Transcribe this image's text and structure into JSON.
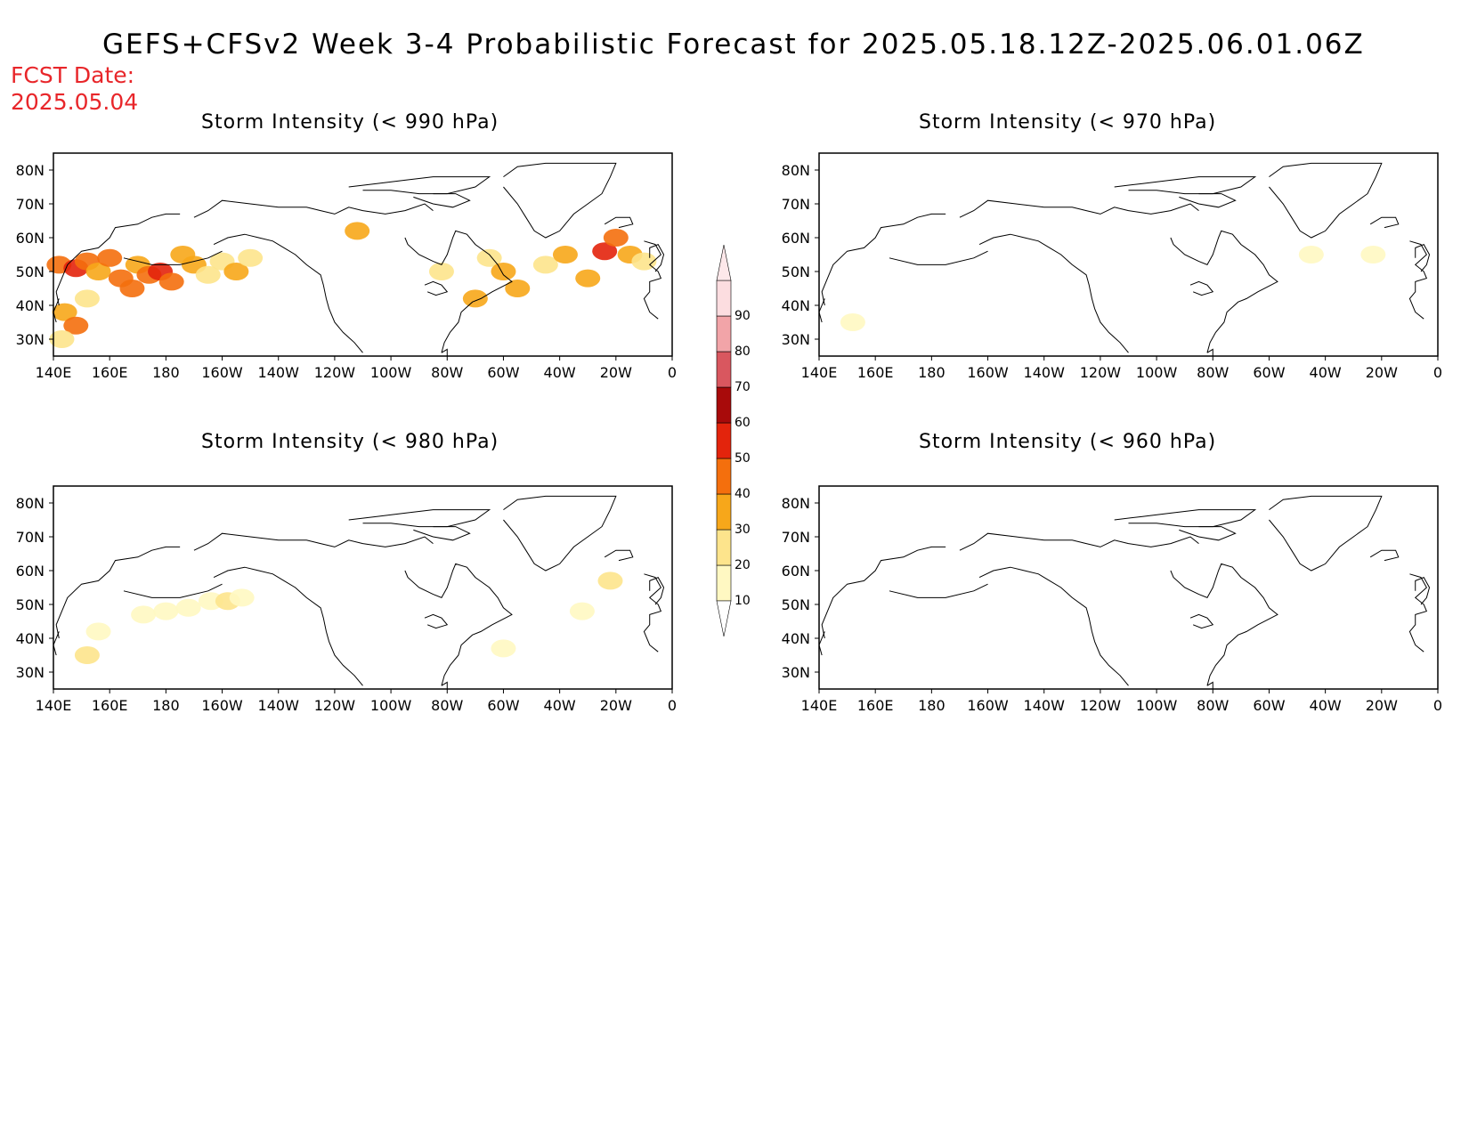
{
  "title": "GEFS+CFSv2 Week 3-4 Probabilistic Forecast for 2025.05.18.12Z-2025.06.01.06Z",
  "fcst_date": {
    "label": "FCST Date:",
    "value": "2025.05.04"
  },
  "panels": [
    {
      "title": "Storm Intensity (< 990 hPa)",
      "threshold_hpa": 990
    },
    {
      "title": "Storm Intensity (< 970 hPa)",
      "threshold_hpa": 970
    },
    {
      "title": "Storm Intensity (< 980 hPa)",
      "threshold_hpa": 980
    },
    {
      "title": "Storm Intensity (< 960 hPa)",
      "threshold_hpa": 960
    }
  ],
  "axes": {
    "lon_labels": [
      "140E",
      "160E",
      "180",
      "160W",
      "140W",
      "120W",
      "100W",
      "80W",
      "60W",
      "40W",
      "20W",
      "0"
    ],
    "lat_labels": [
      "80N",
      "70N",
      "60N",
      "50N",
      "40N",
      "30N"
    ],
    "lon_range": [
      140,
      360
    ],
    "lat_range": [
      25,
      85
    ]
  },
  "colorbar": {
    "labels": [
      "10",
      "20",
      "30",
      "40",
      "50",
      "60",
      "70",
      "80",
      "90"
    ],
    "colors": [
      "#fff8c2",
      "#fde48c",
      "#f7a71a",
      "#f46f0d",
      "#e3240c",
      "#a80a0a",
      "#d9575f",
      "#f2a4a8",
      "#fcdde0"
    ]
  },
  "chart_data": {
    "type": "heatmap",
    "units": "probability (%)",
    "panels": [
      {
        "threshold_hpa": 990,
        "cells": [
          {
            "lon": 142,
            "lat": 52,
            "v": 40
          },
          {
            "lon": 148,
            "lat": 51,
            "v": 50
          },
          {
            "lon": 152,
            "lat": 53,
            "v": 40
          },
          {
            "lon": 156,
            "lat": 50,
            "v": 30
          },
          {
            "lon": 160,
            "lat": 54,
            "v": 40
          },
          {
            "lon": 164,
            "lat": 48,
            "v": 40
          },
          {
            "lon": 168,
            "lat": 45,
            "v": 40
          },
          {
            "lon": 170,
            "lat": 52,
            "v": 30
          },
          {
            "lon": 174,
            "lat": 49,
            "v": 40
          },
          {
            "lon": 178,
            "lat": 50,
            "v": 50
          },
          {
            "lon": 182,
            "lat": 47,
            "v": 40
          },
          {
            "lon": 186,
            "lat": 55,
            "v": 30
          },
          {
            "lon": 190,
            "lat": 52,
            "v": 30
          },
          {
            "lon": 195,
            "lat": 49,
            "v": 20
          },
          {
            "lon": 200,
            "lat": 53,
            "v": 20
          },
          {
            "lon": 205,
            "lat": 50,
            "v": 30
          },
          {
            "lon": 210,
            "lat": 54,
            "v": 20
          },
          {
            "lon": 144,
            "lat": 38,
            "v": 30
          },
          {
            "lon": 148,
            "lat": 34,
            "v": 40
          },
          {
            "lon": 143,
            "lat": 30,
            "v": 20
          },
          {
            "lon": 152,
            "lat": 42,
            "v": 20
          },
          {
            "lon": 295,
            "lat": 54,
            "v": 20
          },
          {
            "lon": 300,
            "lat": 50,
            "v": 30
          },
          {
            "lon": 305,
            "lat": 45,
            "v": 30
          },
          {
            "lon": 315,
            "lat": 52,
            "v": 20
          },
          {
            "lon": 322,
            "lat": 55,
            "v": 30
          },
          {
            "lon": 330,
            "lat": 48,
            "v": 30
          },
          {
            "lon": 336,
            "lat": 56,
            "v": 50
          },
          {
            "lon": 340,
            "lat": 60,
            "v": 40
          },
          {
            "lon": 345,
            "lat": 55,
            "v": 30
          },
          {
            "lon": 350,
            "lat": 53,
            "v": 20
          },
          {
            "lon": 248,
            "lat": 62,
            "v": 30
          },
          {
            "lon": 278,
            "lat": 50,
            "v": 20
          },
          {
            "lon": 290,
            "lat": 42,
            "v": 30
          }
        ]
      },
      {
        "threshold_hpa": 970,
        "cells": [
          {
            "lon": 152,
            "lat": 35,
            "v": 10
          },
          {
            "lon": 315,
            "lat": 55,
            "v": 10
          },
          {
            "lon": 337,
            "lat": 55,
            "v": 10
          }
        ]
      },
      {
        "threshold_hpa": 980,
        "cells": [
          {
            "lon": 172,
            "lat": 47,
            "v": 10
          },
          {
            "lon": 180,
            "lat": 48,
            "v": 10
          },
          {
            "lon": 188,
            "lat": 49,
            "v": 10
          },
          {
            "lon": 196,
            "lat": 51,
            "v": 10
          },
          {
            "lon": 202,
            "lat": 51,
            "v": 20
          },
          {
            "lon": 207,
            "lat": 52,
            "v": 10
          },
          {
            "lon": 156,
            "lat": 42,
            "v": 10
          },
          {
            "lon": 152,
            "lat": 35,
            "v": 20
          },
          {
            "lon": 338,
            "lat": 57,
            "v": 20
          },
          {
            "lon": 300,
            "lat": 37,
            "v": 10
          },
          {
            "lon": 328,
            "lat": 48,
            "v": 10
          }
        ]
      },
      {
        "threshold_hpa": 960,
        "cells": []
      }
    ]
  }
}
